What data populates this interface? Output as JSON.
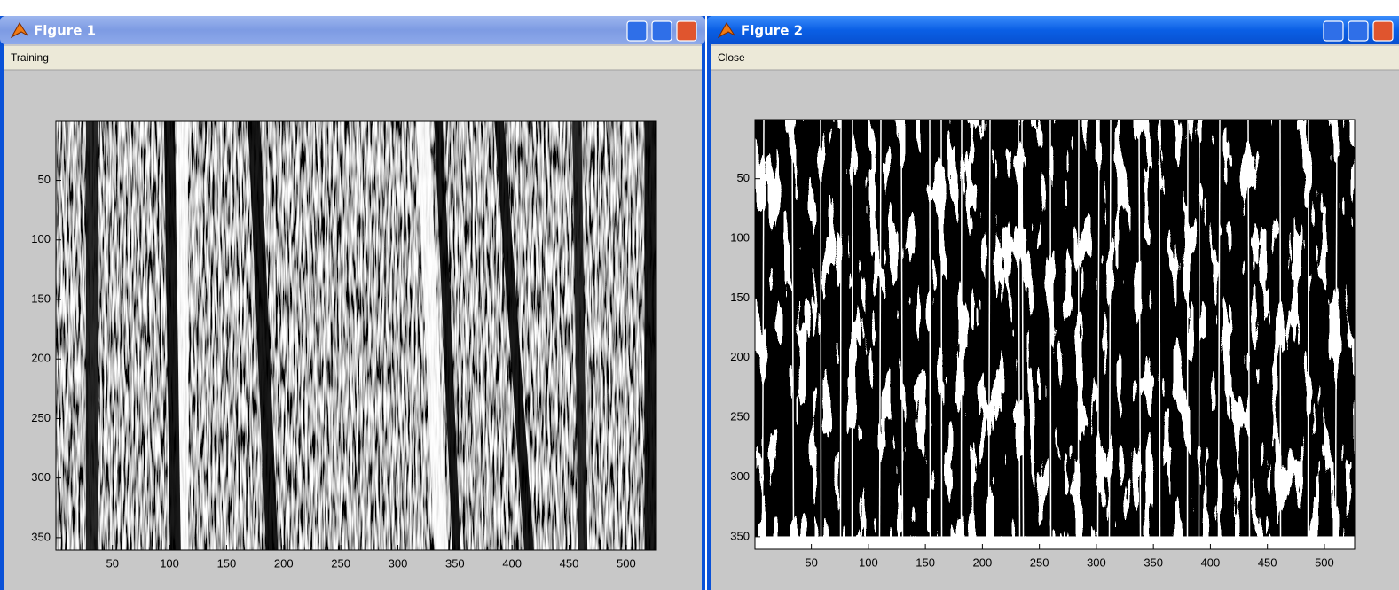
{
  "windows": [
    {
      "title": "Figure 1",
      "menu": "Training",
      "axes": {
        "xlim": [
          0.5,
          526.5
        ],
        "ylim": [
          0.5,
          360.5
        ],
        "xticks": [
          50,
          100,
          150,
          200,
          250,
          300,
          350,
          400,
          450,
          500
        ],
        "yticks": [
          50,
          100,
          150,
          200,
          250,
          300,
          350
        ]
      }
    },
    {
      "title": "Figure 2",
      "menu": "Close",
      "axes": {
        "xlim": [
          0.5,
          526.5
        ],
        "ylim": [
          0.5,
          360.5
        ],
        "xticks": [
          50,
          100,
          150,
          200,
          250,
          300,
          350,
          400,
          450,
          500
        ],
        "yticks": [
          50,
          100,
          150,
          200,
          250,
          300,
          350
        ]
      }
    }
  ]
}
